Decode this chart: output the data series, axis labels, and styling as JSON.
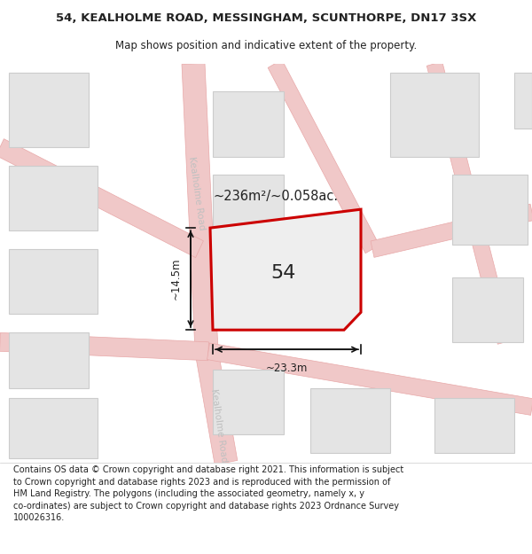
{
  "title_line1": "54, KEALHOLME ROAD, MESSINGHAM, SCUNTHORPE, DN17 3SX",
  "title_line2": "Map shows position and indicative extent of the property.",
  "footer_lines": [
    "Contains OS data © Crown copyright and database right 2021. This information is subject to Crown copyright and database rights 2023 and is reproduced with the permission of",
    "HM Land Registry. The polygons (including the associated geometry, namely x, y co-ordinates) are subject to Crown copyright and database rights 2023 Ordnance Survey",
    "100026316."
  ],
  "map_bg": "#f7f7f7",
  "road_fill": "#f0c8c8",
  "road_edge": "#e8a8a8",
  "building_fill": "#e4e4e4",
  "building_edge": "#cccccc",
  "plot_edge": "#cc0000",
  "plot_fill": "#eeeeee",
  "arrow_color": "#111111",
  "road_label_color": "#c0c0c0",
  "text_color": "#222222",
  "label_54": "54",
  "label_area": "~236m²/~0.058ac.",
  "label_width": "~23.3m",
  "label_height": "~14.5m",
  "road_label": "Kealholme Road",
  "title_fontsize": 9.5,
  "subtitle_fontsize": 8.5,
  "footer_fontsize": 7.0,
  "label_fontsize": 16,
  "meas_fontsize": 8.5,
  "road_label_fontsize": 7.5
}
